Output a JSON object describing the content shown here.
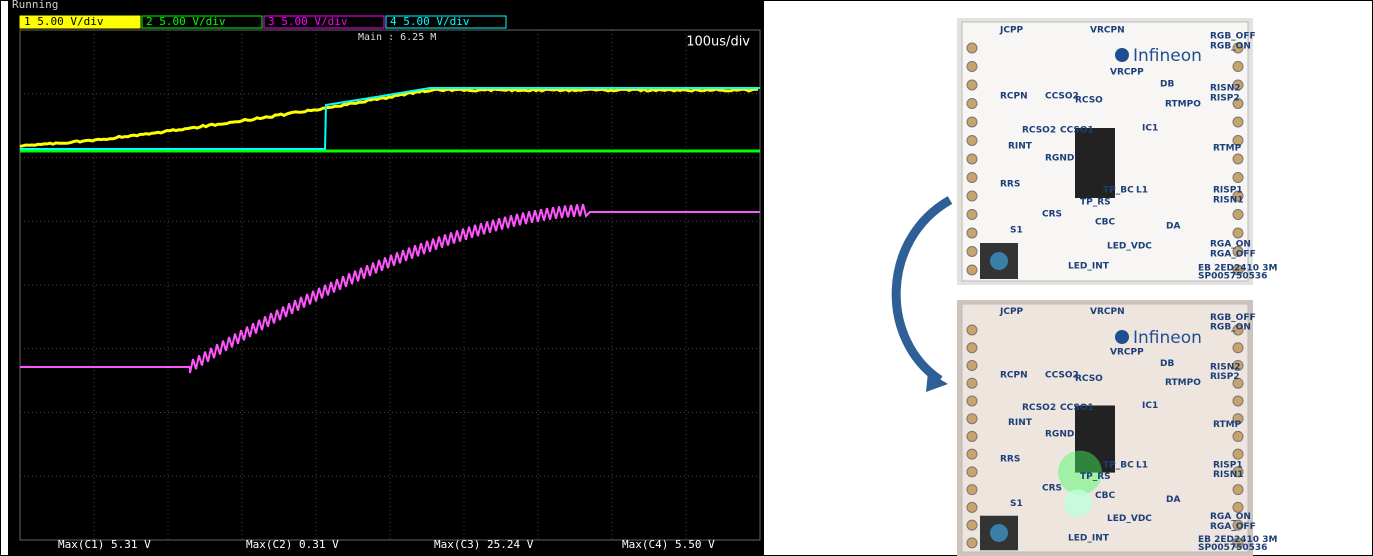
{
  "scope": {
    "status": "Running",
    "channels": [
      "1  5.00 V/div",
      "2  5.00 V/div",
      "3  5.00 V/div",
      "4  5.00 V/div"
    ],
    "main": "Main : 6.25 M",
    "timebase": "100us/div",
    "measurements": [
      "Max(C1)  5.31 V",
      "Max(C2)  0.31 V",
      "Max(C3)  25.24 V",
      "Max(C4)  5.50 V"
    ]
  },
  "board": {
    "brand": "Infineon",
    "labels": [
      "JCPP",
      "VRCPN",
      "RGB_OFF",
      "RGB_ON",
      "VRCPP",
      "RCPN",
      "CCSO2",
      "RCSO",
      "DB",
      "RTMPO",
      "RISN2",
      "RISP2",
      "RCSO2",
      "CCSO1",
      "IC1",
      "RINT",
      "RGND",
      "RTMP",
      "RRS",
      "TP_RS",
      "TP_BC",
      "L1",
      "RISP1",
      "RISN1",
      "CRS",
      "CBC",
      "DA",
      "S1",
      "LED_VDC",
      "RGA_ON",
      "RGA_OFF",
      "LED_INT",
      "EB 2ED2410 3M",
      "SP005750536"
    ]
  }
}
